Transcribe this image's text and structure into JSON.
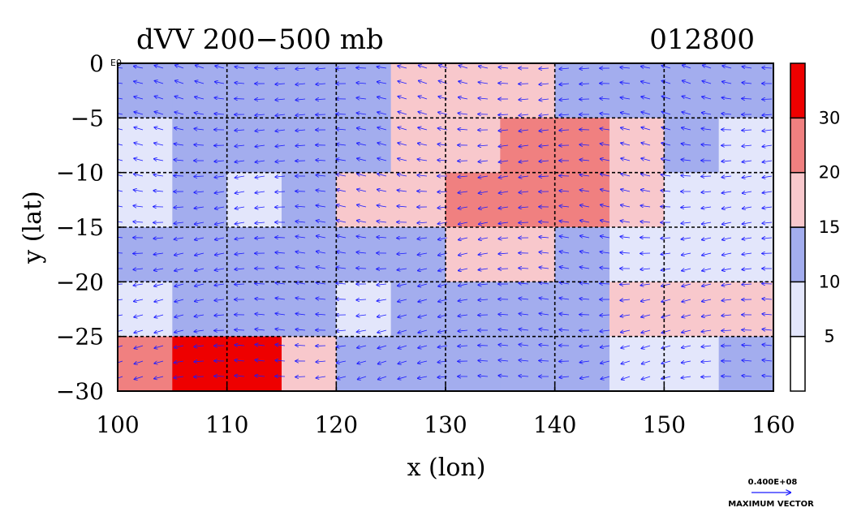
{
  "chart_data": {
    "type": "heatmap",
    "title": "dVV 200−500 mb",
    "subtitle": "012800",
    "xlabel": "x (lon)",
    "ylabel": "y (lat)",
    "xlim": [
      100,
      160
    ],
    "ylim": [
      -30,
      0
    ],
    "xticks": [
      "100",
      "110",
      "120",
      "130",
      "140",
      "150",
      "160"
    ],
    "xtick_values": [
      100,
      110,
      120,
      130,
      140,
      150,
      160
    ],
    "yticks": [
      "0",
      "−5",
      "−10",
      "−15",
      "−20",
      "−25",
      "−30"
    ],
    "ytick_values": [
      0,
      -5,
      -10,
      -15,
      -20,
      -25,
      -30
    ],
    "grid": true,
    "grid_style": "dashed",
    "corner_label": "E0",
    "colorbar": {
      "levels": [
        0,
        5,
        10,
        15,
        20,
        30,
        35
      ],
      "labels": [
        "5",
        "10",
        "15",
        "20",
        "30"
      ],
      "label_values": [
        5,
        10,
        15,
        20,
        30
      ],
      "colors": [
        "#ffffff",
        "#e3e6fb",
        "#a3adee",
        "#f8c8cc",
        "#f08080",
        "#ee0000"
      ]
    },
    "cells_dims": {
      "nx": 12,
      "ny": 6,
      "lon0": 100,
      "lon1": 160,
      "lat0": 0,
      "lat1": -30
    },
    "cells": [
      [
        2,
        2,
        2,
        2,
        2,
        3,
        3,
        3,
        2,
        2,
        2,
        2
      ],
      [
        1,
        2,
        2,
        2,
        2,
        3,
        3,
        4,
        4,
        3,
        2,
        1
      ],
      [
        1,
        2,
        1,
        2,
        3,
        3,
        4,
        4,
        4,
        3,
        1,
        1
      ],
      [
        2,
        2,
        2,
        2,
        2,
        2,
        3,
        3,
        2,
        1,
        1,
        1
      ],
      [
        1,
        2,
        2,
        2,
        1,
        2,
        2,
        2,
        2,
        3,
        3,
        3
      ],
      [
        4,
        5,
        5,
        3,
        2,
        2,
        2,
        2,
        2,
        1,
        1,
        2
      ]
    ],
    "vector_legend": {
      "value_label": "0.400E+08",
      "caption": "MAXIMUM VECTOR"
    },
    "vector_color": "#1a1aff"
  }
}
